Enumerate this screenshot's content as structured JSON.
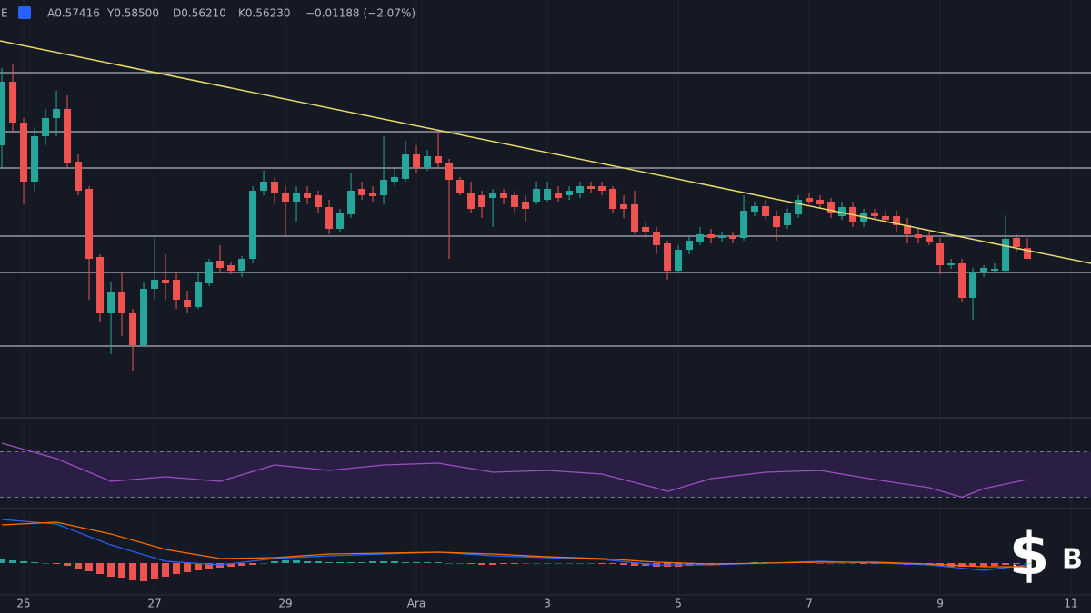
{
  "chart_data": [
    {
      "type": "candlestick",
      "legend_text": [
        "E",
        "A0.57416",
        "Y0.58500",
        "D0.56210",
        "K0.56230",
        "−0.01188 (−2.07%)"
      ],
      "up_color": "#26a69a",
      "down_color": "#ef5350",
      "open": [
        0.6873,
        0.7573,
        0.7123,
        0.6473,
        0.6973,
        0.7173,
        0.7273,
        0.6693,
        0.6393,
        0.5643,
        0.5023,
        0.5253,
        0.5023,
        0.4673,
        0.5293,
        0.5393,
        0.5393,
        0.5173,
        0.5093,
        0.5353,
        0.5603,
        0.5553,
        0.5493,
        0.5623,
        0.6373,
        0.6473,
        0.6353,
        0.6253,
        0.6353,
        0.6323,
        0.6193,
        0.5953,
        0.6113,
        0.6393,
        0.6343,
        0.6323,
        0.6473,
        0.6503,
        0.6773,
        0.6623,
        0.6753,
        0.6673,
        0.6493,
        0.6353,
        0.6323,
        0.6293,
        0.6353,
        0.6323,
        0.6253,
        0.6253,
        0.6273,
        0.6353,
        0.6323,
        0.6353,
        0.6423,
        0.6423,
        0.6393,
        0.6223,
        0.6223,
        0.5973,
        0.5923,
        0.5793,
        0.5493,
        0.5723,
        0.5813,
        0.5893,
        0.5853,
        0.5873,
        0.5853,
        0.6143,
        0.6203,
        0.6093,
        0.5993,
        0.6113,
        0.6293,
        0.6273,
        0.6253,
        0.6093,
        0.6193,
        0.6023,
        0.6123,
        0.6093,
        0.6093,
        0.5993,
        0.5893,
        0.5873,
        0.5793,
        0.5553,
        0.5573,
        0.5193,
        0.5473,
        0.5493,
        0.5493,
        0.5853,
        0.57416
      ],
      "high": [
        0.7723,
        0.7773,
        0.7173,
        0.7073,
        0.7273,
        0.7473,
        0.7423,
        0.6773,
        0.6423,
        0.5673,
        0.5373,
        0.5473,
        0.5073,
        0.5373,
        0.5853,
        0.5673,
        0.5473,
        0.5273,
        0.5473,
        0.5623,
        0.5773,
        0.5593,
        0.5653,
        0.6423,
        0.6593,
        0.6523,
        0.6423,
        0.6423,
        0.6423,
        0.6373,
        0.6273,
        0.6173,
        0.6573,
        0.6473,
        0.6423,
        0.6973,
        0.6623,
        0.6923,
        0.6873,
        0.6823,
        0.7023,
        0.6723,
        0.6523,
        0.6473,
        0.6373,
        0.6393,
        0.6393,
        0.6373,
        0.6323,
        0.6473,
        0.6473,
        0.6423,
        0.6423,
        0.6473,
        0.6473,
        0.6473,
        0.6423,
        0.6323,
        0.6373,
        0.6023,
        0.5973,
        0.5823,
        0.5773,
        0.5873,
        0.5973,
        0.5953,
        0.5923,
        0.5923,
        0.6323,
        0.6253,
        0.6273,
        0.6153,
        0.6173,
        0.6323,
        0.6353,
        0.6323,
        0.6293,
        0.6253,
        0.6253,
        0.6173,
        0.6173,
        0.6153,
        0.6153,
        0.6073,
        0.5953,
        0.5923,
        0.5853,
        0.5623,
        0.5623,
        0.5523,
        0.5553,
        0.5573,
        0.6103,
        0.5893,
        0.585
      ],
      "low": [
        0.6623,
        0.7023,
        0.6223,
        0.6373,
        0.6873,
        0.6973,
        0.6623,
        0.6323,
        0.5173,
        0.4923,
        0.4573,
        0.4773,
        0.4393,
        0.4653,
        0.5173,
        0.5173,
        0.5073,
        0.5023,
        0.5073,
        0.5323,
        0.5473,
        0.5453,
        0.5423,
        0.5573,
        0.6323,
        0.6223,
        0.5873,
        0.6023,
        0.6223,
        0.6123,
        0.5893,
        0.5923,
        0.6073,
        0.6273,
        0.6253,
        0.6223,
        0.6423,
        0.6473,
        0.6573,
        0.6593,
        0.6623,
        0.5623,
        0.6323,
        0.6123,
        0.6073,
        0.5973,
        0.6223,
        0.6123,
        0.6023,
        0.6223,
        0.6253,
        0.6253,
        0.6273,
        0.6293,
        0.6353,
        0.6323,
        0.6123,
        0.6073,
        0.5893,
        0.5853,
        0.5673,
        0.5393,
        0.5473,
        0.5673,
        0.5773,
        0.5793,
        0.5813,
        0.5793,
        0.5823,
        0.6093,
        0.6053,
        0.5823,
        0.5953,
        0.6073,
        0.6223,
        0.6173,
        0.6073,
        0.6053,
        0.5973,
        0.5973,
        0.6053,
        0.6013,
        0.5923,
        0.5793,
        0.5793,
        0.5773,
        0.5453,
        0.5513,
        0.5153,
        0.4953,
        0.5423,
        0.5473,
        0.5473,
        0.5693,
        0.5621
      ],
      "close": [
        0.7573,
        0.7123,
        0.6473,
        0.6973,
        0.7173,
        0.7273,
        0.6673,
        0.6373,
        0.5623,
        0.5023,
        0.5253,
        0.5023,
        0.4673,
        0.5293,
        0.5393,
        0.5353,
        0.5173,
        0.5093,
        0.5373,
        0.5593,
        0.5523,
        0.5493,
        0.5623,
        0.6373,
        0.6473,
        0.6353,
        0.6253,
        0.6353,
        0.6293,
        0.6193,
        0.5953,
        0.6123,
        0.6373,
        0.6323,
        0.6313,
        0.6493,
        0.6523,
        0.6773,
        0.6623,
        0.6753,
        0.6673,
        0.6493,
        0.6353,
        0.6173,
        0.6193,
        0.6353,
        0.6293,
        0.6193,
        0.6173,
        0.6393,
        0.6393,
        0.6293,
        0.6373,
        0.6423,
        0.6393,
        0.6373,
        0.6173,
        0.6173,
        0.5923,
        0.5913,
        0.5773,
        0.5493,
        0.5723,
        0.5823,
        0.5893,
        0.5853,
        0.5873,
        0.5843,
        0.6153,
        0.6203,
        0.6093,
        0.5973,
        0.6123,
        0.6273,
        0.6253,
        0.6223,
        0.6123,
        0.6193,
        0.6023,
        0.6123,
        0.6093,
        0.6053,
        0.5993,
        0.5893,
        0.5853,
        0.5813,
        0.5553,
        0.5573,
        0.5193,
        0.5473,
        0.5523,
        0.5513,
        0.5843,
        0.5753,
        0.5623
      ],
      "xlim": [
        -0.17,
        99.83
      ],
      "ylim": [
        0.3873,
        0.8473
      ],
      "levels": [
        0.7673,
        0.7023,
        0.6623,
        0.5873,
        0.5473,
        0.4663
      ],
      "level_color": "#9598a1",
      "trendline": {
        "values": [
          0.8023,
          0.5573
        ],
        "color": "#e8d96a"
      },
      "watermark": "B"
    },
    {
      "type": "line",
      "x": [
        0,
        5,
        10,
        15,
        20,
        25,
        30,
        35,
        40,
        45,
        50,
        55,
        60,
        61,
        65,
        70,
        75,
        80,
        85,
        88,
        90,
        94
      ],
      "series": [
        {
          "color": "#9c4fc1",
          "values": [
            77.6,
            64,
            44,
            48,
            44,
            58.4,
            53.6,
            58.4,
            60,
            52,
            53.6,
            50.4,
            38,
            35,
            46.4,
            52,
            53.6,
            45.6,
            38.4,
            30,
            37.6,
            45.6
          ]
        }
      ],
      "xlim": [
        -0.17,
        99.83
      ],
      "ylim": [
        20,
        100
      ],
      "levels": [
        70,
        30
      ],
      "band_color": "#2a1e45"
    },
    {
      "type": "macd",
      "x": [
        0,
        5,
        10,
        15,
        20,
        25,
        30,
        35,
        40,
        45,
        50,
        55,
        60,
        65,
        70,
        75,
        80,
        85,
        90,
        94
      ],
      "series": [
        {
          "color": "#2962ff",
          "values": [
            0.048,
            0.043,
            0.02,
            0.002,
            -0.002,
            0.005,
            0.008,
            0.01,
            0.012,
            0.008,
            0.006,
            0.004,
            -0.002,
            -0.002,
            0,
            0.002,
            0,
            -0.002,
            -0.008,
            -0.002
          ]
        },
        {
          "color": "#ff6d00",
          "values": [
            0.042,
            0.045,
            0.032,
            0.015,
            0.005,
            0.006,
            0.01,
            0.011,
            0.012,
            0.01,
            0.007,
            0.005,
            0.001,
            -0.001,
            0,
            0.001,
            0.001,
            -0.001,
            -0.004,
            -0.004
          ]
        }
      ],
      "histogram": {
        "up_color": "#26a69a",
        "down_color": "#ef5350",
        "values": [
          0.004,
          0.003,
          0.002,
          0.001,
          0,
          -0.001,
          -0.003,
          -0.006,
          -0.009,
          -0.012,
          -0.015,
          -0.017,
          -0.019,
          -0.02,
          -0.018,
          -0.015,
          -0.012,
          -0.01,
          -0.008,
          -0.006,
          -0.005,
          -0.004,
          -0.003,
          -0.002,
          0,
          0.002,
          0.003,
          0.003,
          0.002,
          0.002,
          0.001,
          0.001,
          0.001,
          0.001,
          0.002,
          0.002,
          0.002,
          0.001,
          0.001,
          0.001,
          0.001,
          0,
          0,
          -0.001,
          -0.002,
          -0.002,
          -0.001,
          -0.001,
          0,
          0,
          0,
          0,
          0,
          0,
          0,
          -0.001,
          -0.001,
          -0.002,
          -0.003,
          -0.003,
          -0.004,
          -0.004,
          -0.004,
          -0.003,
          -0.002,
          -0.002,
          -0.001,
          -0.001,
          0,
          0.001,
          0.001,
          0.001,
          0.001,
          0.001,
          0.001,
          0,
          0,
          0,
          0,
          -0.001,
          -0.001,
          -0.001,
          -0.001,
          -0.002,
          -0.002,
          -0.002,
          -0.003,
          -0.004,
          -0.004,
          -0.004,
          -0.004,
          -0.003,
          -0.002,
          -0.001,
          0
        ]
      },
      "xlim": [
        -0.17,
        99.83
      ],
      "ylim": [
        -0.035,
        0.06
      ],
      "xticks": [
        {
          "value": 2,
          "label": "25"
        },
        {
          "value": 14,
          "label": "27"
        },
        {
          "value": 26,
          "label": "29"
        },
        {
          "value": 38,
          "label": "Ara"
        },
        {
          "value": 50,
          "label": "3"
        },
        {
          "value": 62,
          "label": "5"
        },
        {
          "value": 74,
          "label": "7"
        },
        {
          "value": 86,
          "label": "9"
        },
        {
          "value": 98,
          "label": "11"
        }
      ]
    }
  ]
}
